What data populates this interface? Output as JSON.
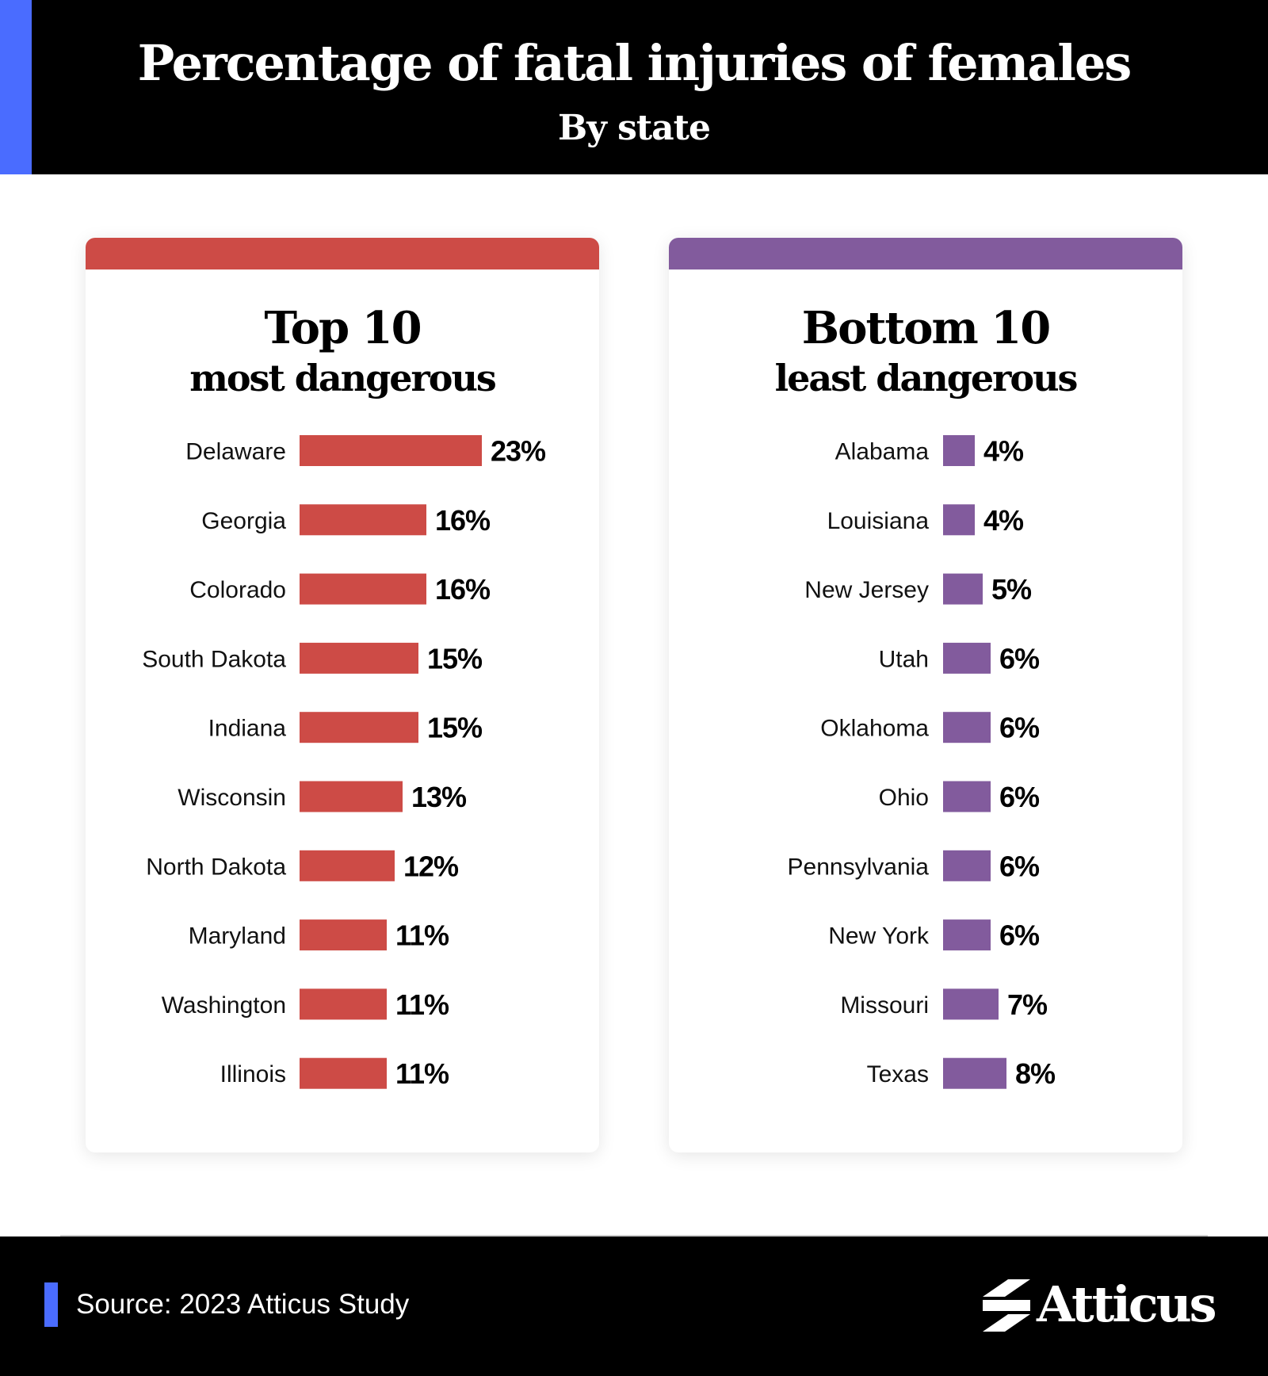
{
  "header": {
    "title": "Percentage of fatal injuries of females",
    "subtitle": "By state"
  },
  "colors": {
    "top_accent": "#cd4b46",
    "bottom_accent": "#825b9d",
    "brand_blue": "#4a6cff"
  },
  "chart_data": [
    {
      "type": "bar",
      "orientation": "horizontal",
      "title": "Top 10",
      "subtitle": "most dangerous",
      "color": "#cd4b46",
      "categories": [
        "Delaware",
        "Georgia",
        "Colorado",
        "South Dakota",
        "Indiana",
        "Wisconsin",
        "North Dakota",
        "Maryland",
        "Washington",
        "Illinois"
      ],
      "values": [
        23,
        16,
        16,
        15,
        15,
        13,
        12,
        11,
        11,
        11
      ],
      "value_labels": [
        "23%",
        "16%",
        "16%",
        "15%",
        "15%",
        "13%",
        "12%",
        "11%",
        "11%",
        "11%"
      ]
    },
    {
      "type": "bar",
      "orientation": "horizontal",
      "title": "Bottom 10",
      "subtitle": "least dangerous",
      "color": "#825b9d",
      "categories": [
        "Alabama",
        "Louisiana",
        "New Jersey",
        "Utah",
        "Oklahoma",
        "Ohio",
        "Pennsylvania",
        "New York",
        "Missouri",
        "Texas"
      ],
      "values": [
        4,
        4,
        5,
        6,
        6,
        6,
        6,
        6,
        7,
        8
      ],
      "value_labels": [
        "4%",
        "4%",
        "5%",
        "6%",
        "6%",
        "6%",
        "6%",
        "6%",
        "7%",
        "8%"
      ]
    }
  ],
  "footer": {
    "source": "Source: 2023 Atticus Study",
    "brand": "Atticus"
  }
}
